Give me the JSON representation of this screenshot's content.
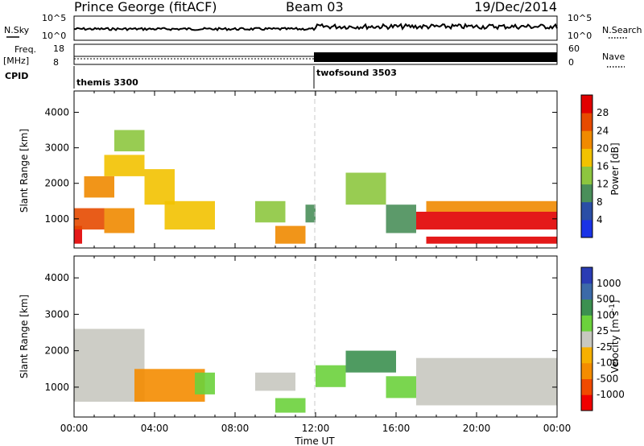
{
  "header": {
    "station": "Prince George (fitACF)",
    "beam": "Beam 03",
    "date": "19/Dec/2014"
  },
  "top_panels": {
    "nsky_label": "N.Sky",
    "nsky_ticks": [
      "10^5",
      "10^0"
    ],
    "nsearch_label": "N.Search",
    "nsearch_ticks": [
      "10^5",
      "10^0"
    ],
    "freq_label_line1": "Freq.",
    "freq_label_line2": "[MHz]",
    "freq_ticks": [
      "18",
      "8"
    ],
    "nave_label": "Nave",
    "nave_ticks": [
      "60",
      "0"
    ],
    "cpid_label": "CPID",
    "programs": [
      "themis 3300",
      "twofsound 3503"
    ]
  },
  "colors": {
    "power_scale": [
      "#1a33e6",
      "#2b4ea6",
      "#4a8f5a",
      "#8dc63f",
      "#f2c200",
      "#f08a00",
      "#e64a00",
      "#e10000"
    ],
    "velocity_scale": [
      "#f00000",
      "#f04a00",
      "#f48c00",
      "#f6b000",
      "#c8c8c0",
      "#6cd23c",
      "#3c9050",
      "#3c6aa8",
      "#2a3cb4"
    ],
    "ground_scatter": "#c8c8c0"
  },
  "chart_data": [
    {
      "type": "heatmap",
      "title": "",
      "xlabel": "Time UT",
      "ylabel": "Slant Range [km]",
      "x_ticks": [
        "00:00",
        "04:00",
        "08:00",
        "12:00",
        "16:00",
        "20:00",
        "00:00"
      ],
      "xlim": [
        0,
        24
      ],
      "y_ticks": [
        1000,
        2000,
        3000,
        4000
      ],
      "ylim": [
        180,
        4600
      ],
      "colorbar": {
        "label": "Power [dB]",
        "ticks": [
          "4",
          "8",
          "12",
          "16",
          "20",
          "24",
          "28"
        ],
        "range": [
          0,
          30
        ]
      },
      "regions": [
        {
          "t": [
            0.0,
            0.4
          ],
          "r": [
            300,
            800
          ],
          "v": 27
        },
        {
          "t": [
            0.0,
            1.5
          ],
          "r": [
            700,
            1300
          ],
          "v": 26
        },
        {
          "t": [
            1.5,
            3.0
          ],
          "r": [
            600,
            1300
          ],
          "v": 21
        },
        {
          "t": [
            0.5,
            2.0
          ],
          "r": [
            1600,
            2200
          ],
          "v": 22
        },
        {
          "t": [
            1.5,
            3.5
          ],
          "r": [
            2200,
            2800
          ],
          "v": 15
        },
        {
          "t": [
            2.0,
            3.5
          ],
          "r": [
            2900,
            3500
          ],
          "v": 12
        },
        {
          "t": [
            3.5,
            5.0
          ],
          "r": [
            1400,
            2400
          ],
          "v": 18
        },
        {
          "t": [
            4.5,
            7.0
          ],
          "r": [
            700,
            1500
          ],
          "v": 17
        },
        {
          "t": [
            9.0,
            10.5
          ],
          "r": [
            900,
            1500
          ],
          "v": 13
        },
        {
          "t": [
            10.0,
            11.5
          ],
          "r": [
            300,
            800
          ],
          "v": 22
        },
        {
          "t": [
            11.5,
            12.0
          ],
          "r": [
            900,
            1400
          ],
          "v": 10
        },
        {
          "t": [
            13.5,
            15.5
          ],
          "r": [
            1400,
            2300
          ],
          "v": 14
        },
        {
          "t": [
            15.5,
            17.0
          ],
          "r": [
            600,
            1400
          ],
          "v": 11
        },
        {
          "t": [
            17.0,
            24.0
          ],
          "r": [
            700,
            1200
          ],
          "v": 27
        },
        {
          "t": [
            17.5,
            24.0
          ],
          "r": [
            1200,
            1500
          ],
          "v": 19
        },
        {
          "t": [
            17.5,
            24.0
          ],
          "r": [
            300,
            500
          ],
          "v": 28
        }
      ]
    },
    {
      "type": "heatmap",
      "title": "",
      "xlabel": "Time UT",
      "ylabel": "Slant Range [km]",
      "x_ticks": [
        "00:00",
        "04:00",
        "08:00",
        "12:00",
        "16:00",
        "20:00",
        "00:00"
      ],
      "xlim": [
        0,
        24
      ],
      "y_ticks": [
        1000,
        2000,
        3000,
        4000
      ],
      "ylim": [
        180,
        4600
      ],
      "colorbar": {
        "label": "Velocity [m s^-1]",
        "ticks": [
          "1000",
          "500",
          "100",
          "25",
          "-25",
          "-100",
          "-500",
          "-1000"
        ]
      },
      "regions": [
        {
          "t": [
            0.0,
            3.5
          ],
          "r": [
            600,
            2600
          ],
          "v": "ground"
        },
        {
          "t": [
            3.0,
            6.5
          ],
          "r": [
            600,
            1500
          ],
          "v": -300
        },
        {
          "t": [
            6.0,
            7.0
          ],
          "r": [
            800,
            1400
          ],
          "v": 50
        },
        {
          "t": [
            9.0,
            11.0
          ],
          "r": [
            900,
            1400
          ],
          "v": "ground"
        },
        {
          "t": [
            10.0,
            11.5
          ],
          "r": [
            300,
            700
          ],
          "v": 80
        },
        {
          "t": [
            12.0,
            13.5
          ],
          "r": [
            1000,
            1600
          ],
          "v": 90
        },
        {
          "t": [
            13.5,
            16.0
          ],
          "r": [
            1400,
            2000
          ],
          "v": 400
        },
        {
          "t": [
            15.5,
            17.0
          ],
          "r": [
            700,
            1300
          ],
          "v": 100
        },
        {
          "t": [
            17.0,
            24.0
          ],
          "r": [
            500,
            1800
          ],
          "v": "ground"
        }
      ]
    }
  ]
}
